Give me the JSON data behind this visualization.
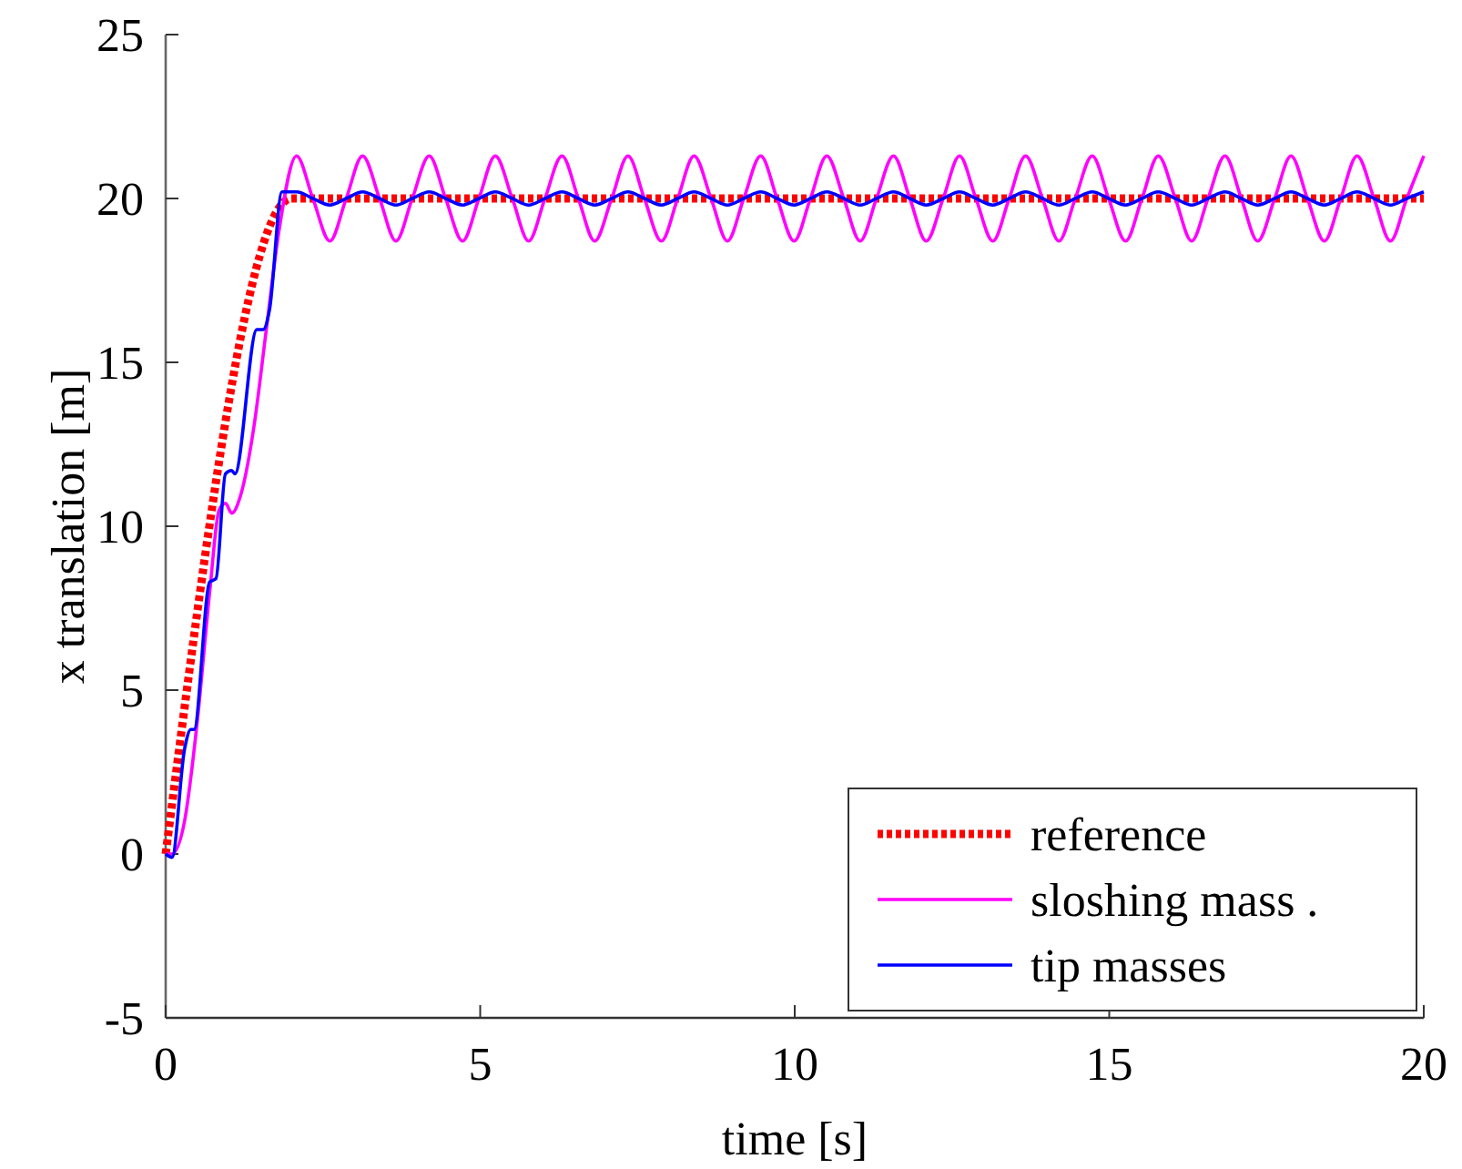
{
  "chart_data": {
    "type": "line",
    "xlabel": "time [s]",
    "ylabel": "x translation [m]",
    "xlim": [
      0,
      20
    ],
    "ylim": [
      -5,
      25
    ],
    "xticks": [
      0,
      5,
      10,
      15,
      20
    ],
    "yticks": [
      -5,
      0,
      5,
      10,
      15,
      20,
      25
    ],
    "grid": false,
    "legend": "bottom right",
    "series": [
      {
        "name": "reference",
        "color": "#ff0000",
        "line_style": "dotted",
        "x": [
          0,
          2,
          20
        ],
        "values": [
          0,
          20,
          20
        ]
      },
      {
        "name": "sloshing mass .",
        "color": "#ff00ff",
        "line_style": "solid",
        "x": [
          0,
          0.1,
          0.3,
          0.5,
          0.7,
          0.85,
          0.95,
          1.05,
          1.2,
          1.4,
          1.6,
          1.8,
          2.08,
          2.34,
          2.61,
          2.87,
          3.13,
          3.4,
          3.66,
          3.92,
          4.19,
          4.45,
          4.72,
          4.98,
          5.24,
          5.51,
          5.77,
          6.03,
          6.3,
          6.56,
          6.82,
          7.09,
          7.35,
          7.61,
          7.88,
          8.14,
          8.4,
          8.67,
          8.93,
          9.19,
          9.46,
          9.72,
          9.99,
          10.25,
          10.51,
          10.78,
          11.04,
          11.3,
          11.57,
          11.83,
          12.09,
          12.36,
          12.62,
          12.88,
          13.15,
          13.41,
          13.67,
          13.94,
          14.2,
          14.46,
          14.73,
          14.99,
          15.26,
          15.52,
          15.78,
          16.05,
          16.31,
          16.57,
          16.84,
          17.1,
          17.36,
          17.63,
          17.89,
          18.15,
          18.42,
          18.68,
          18.94,
          19.21,
          19.47,
          19.73,
          20
        ],
        "values": [
          0,
          0,
          1,
          4,
          8,
          10.5,
          10.7,
          10.4,
          11,
          13,
          16,
          19,
          21.3,
          20,
          18.7,
          20,
          21.3,
          20,
          18.7,
          20,
          21.3,
          20,
          18.7,
          20,
          21.3,
          20,
          18.7,
          20,
          21.3,
          20,
          18.7,
          20,
          21.3,
          20,
          18.7,
          20,
          21.3,
          20,
          18.7,
          20,
          21.3,
          20,
          18.7,
          20,
          21.3,
          20,
          18.7,
          20,
          21.3,
          20,
          18.7,
          20,
          21.3,
          20,
          18.7,
          20,
          21.3,
          20,
          18.7,
          20,
          21.3,
          20,
          18.7,
          20,
          21.3,
          20,
          18.7,
          20,
          21.3,
          20,
          18.7,
          20,
          21.3,
          20,
          18.7,
          20,
          21.3,
          20,
          18.7,
          20,
          21.3
        ]
      },
      {
        "name": "tip masses",
        "color": "#0000ff",
        "line_style": "solid",
        "x": [
          0,
          0.1,
          0.3,
          0.4,
          0.45,
          0.7,
          0.8,
          0.95,
          1.05,
          1.1,
          1.45,
          1.55,
          1.65,
          1.85,
          2.08,
          2.34,
          2.61,
          2.87,
          3.13,
          3.4,
          3.66,
          3.92,
          4.19,
          4.45,
          4.72,
          4.98,
          5.24,
          5.51,
          5.77,
          6.03,
          6.3,
          6.56,
          6.82,
          7.09,
          7.35,
          7.61,
          7.88,
          8.14,
          8.4,
          8.67,
          8.93,
          9.19,
          9.46,
          9.72,
          9.99,
          10.25,
          10.51,
          10.78,
          11.04,
          11.3,
          11.57,
          11.83,
          12.09,
          12.36,
          12.62,
          12.88,
          13.15,
          13.41,
          13.67,
          13.94,
          14.2,
          14.46,
          14.73,
          14.99,
          15.26,
          15.52,
          15.78,
          16.05,
          16.31,
          16.57,
          16.84,
          17.1,
          17.36,
          17.63,
          17.89,
          18.15,
          18.42,
          18.68,
          18.94,
          19.21,
          19.47,
          19.73,
          20
        ],
        "values": [
          0,
          -0.1,
          3.2,
          3.8,
          3.8,
          8.3,
          8.4,
          11.6,
          11.7,
          11.6,
          16,
          16,
          16.6,
          20.2,
          20.2,
          20,
          19.8,
          20,
          20.2,
          20,
          19.8,
          20,
          20.2,
          20,
          19.8,
          20,
          20.2,
          20,
          19.8,
          20,
          20.2,
          20,
          19.8,
          20,
          20.2,
          20,
          19.8,
          20,
          20.2,
          20,
          19.8,
          20,
          20.2,
          20,
          19.8,
          20,
          20.2,
          20,
          19.8,
          20,
          20.2,
          20,
          19.8,
          20,
          20.2,
          20,
          19.8,
          20,
          20.2,
          20,
          19.8,
          20,
          20.2,
          20,
          19.8,
          20,
          20.2,
          20,
          19.8,
          20,
          20.2,
          20,
          19.8,
          20,
          20.2,
          20,
          19.8,
          20,
          20.2,
          20,
          19.8,
          20,
          20.2
        ]
      }
    ]
  }
}
